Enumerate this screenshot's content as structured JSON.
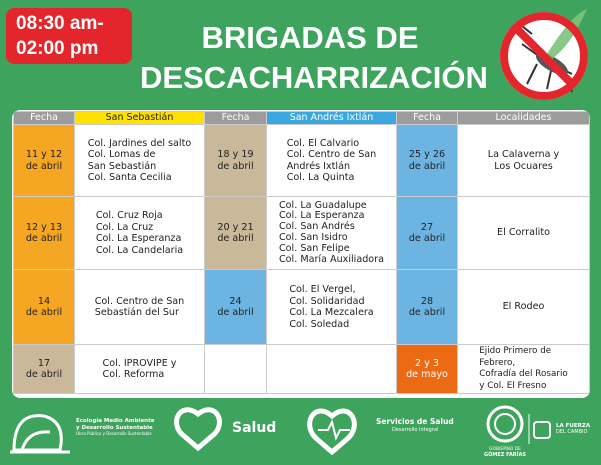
{
  "header": {
    "time": [
      "08:30 am-",
      "02:00 pm"
    ],
    "title": [
      "BRIGADAS DE",
      "DESCACHARRIZACIÓN"
    ]
  },
  "table": {
    "columns": [
      "Fecha",
      "San Sebastián",
      "Fecha",
      "San Andrés Ixtlán",
      "Fecha",
      "Localidades"
    ],
    "rows": [
      [
        [
          "11 y 12",
          "de abril"
        ],
        [
          "Col. Jardines del salto",
          "Col. Lomas de",
          "San Sebastián",
          "Col. Santa Cecilia"
        ],
        [
          "18 y 19",
          "de abril"
        ],
        [
          "Col. El Calvario",
          "Col. Centro de San",
          "Andrés Ixtlán",
          "Col. La Quinta"
        ],
        [
          "25 y 26",
          "de abril"
        ],
        [
          "La Calaverna y",
          "Los Ocuares"
        ]
      ],
      [
        [
          "12 y 13",
          "de abril"
        ],
        [
          "Col. Cruz Roja",
          "Col. La Cruz",
          "Col. La Esperanza",
          "Col. La Candelaria"
        ],
        [
          "20 y 21",
          "de abril"
        ],
        [
          "Col. La Guadalupe",
          "Col. La Esperanza",
          "Col. San Andrés",
          "Col. San Isidro",
          "Col. San Felipe",
          "Col. María Auxiliadora"
        ],
        [
          "27",
          "de abril"
        ],
        [
          "El Corralito"
        ]
      ],
      [
        [
          "14",
          "de abril"
        ],
        [
          "Col. Centro de San",
          "Sebastián del Sur"
        ],
        [
          "24",
          "de abril"
        ],
        [
          "Col. El Vergel,",
          "Col. Solidaridad",
          "Col. La Mezcalera",
          "Col. Soledad"
        ],
        [
          "28",
          "de abril"
        ],
        [
          "El Rodeo"
        ]
      ],
      [
        [
          "17",
          "de abril"
        ],
        [
          "Col. IPROVIPE y",
          "Col. Reforma"
        ],
        null,
        null,
        [
          "2 y 3",
          "de mayo"
        ],
        [
          "Ejido Primero de",
          "Febrero,",
          "Cofradía del Rosario",
          "y Col. El Fresno"
        ]
      ]
    ]
  },
  "footer": {
    "ecologia": [
      "Ecología Medio Ambiente",
      "y Desarrollo Sustentable",
      "Obra Pública y Desarrollo Sustentable"
    ],
    "salud": "Salud",
    "servicios": [
      "Servicios de Salud",
      "Desarrollo Integral"
    ],
    "gobierno": [
      "GOBIERNO DE",
      "GÓMEZ FARÍAS"
    ],
    "fuerza": [
      "LA FUERZA",
      "DEL CAMBIO"
    ]
  }
}
